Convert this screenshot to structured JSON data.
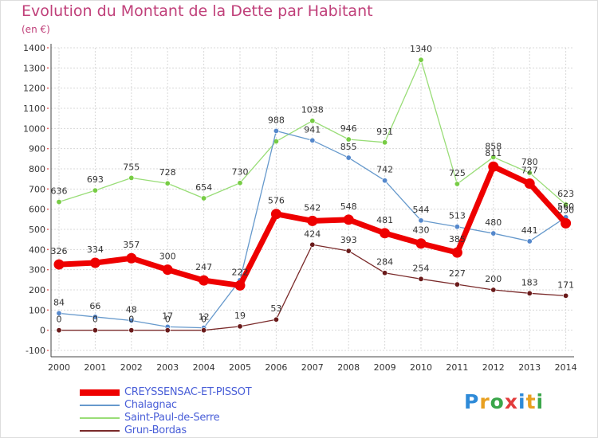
{
  "title": "Evolution du Montant de la Dette par Habitant",
  "subtitle": "(en €)",
  "logo": {
    "letters": [
      "P",
      "r",
      "o",
      "x",
      "i",
      "t",
      "i"
    ],
    "colors": [
      "#2e8ad8",
      "#e8a020",
      "#3aa64a",
      "#e23c3c",
      "#2e8ad8",
      "#e8a020",
      "#3aa64a"
    ]
  },
  "chart_data": {
    "type": "line",
    "x": [
      "2000",
      "2001",
      "2002",
      "2003",
      "2004",
      "2005",
      "2006",
      "2007",
      "2008",
      "2009",
      "2010",
      "2011",
      "2012",
      "2013",
      "2014"
    ],
    "ylim": [
      -100,
      1400
    ],
    "yticks": [
      "-100",
      "0",
      "100",
      "200",
      "300",
      "400",
      "500",
      "600",
      "700",
      "800",
      "900",
      "1000",
      "1100",
      "1200",
      "1300",
      "1400"
    ],
    "grid": true,
    "legend_position": "bottom-left",
    "series": [
      {
        "name": "Saint-Paul-de-Serre",
        "color": "#99dd77",
        "marker_color": "#77cc44",
        "values": [
          636,
          693,
          755,
          728,
          654,
          730,
          936,
          1038,
          946,
          931,
          1340,
          725,
          858,
          780,
          623
        ],
        "labels": [
          "636",
          "693",
          "755",
          "728",
          "654",
          "730",
          "",
          "1038",
          "946",
          "931",
          "1340",
          "725",
          "858",
          "780",
          "623"
        ]
      },
      {
        "name": "Chalagnac",
        "color": "#6699cc",
        "marker_color": "#5588cc",
        "values": [
          84,
          66,
          48,
          17,
          12,
          248,
          988,
          941,
          855,
          742,
          544,
          513,
          480,
          441,
          560
        ],
        "labels": [
          "84",
          "66",
          "48",
          "17",
          "12",
          "",
          "988",
          "941",
          "855",
          "742",
          "544",
          "513",
          "480",
          "441",
          "560"
        ]
      },
      {
        "name": "Grun-Bordas",
        "color": "#7a2a2a",
        "marker_color": "#6a1a1a",
        "values": [
          0,
          0,
          0,
          0,
          0,
          19,
          53,
          424,
          393,
          284,
          254,
          227,
          200,
          183,
          171
        ],
        "labels": [
          "0",
          "0",
          "0",
          "0",
          "0",
          "19",
          "53",
          "424",
          "393",
          "284",
          "254",
          "227",
          "200",
          "183",
          "171"
        ]
      },
      {
        "name": "CREYSSENSAC-ET-PISSOT",
        "color": "#ee0000",
        "marker_color": "#ee0000",
        "values": [
          326,
          334,
          357,
          300,
          247,
          222,
          576,
          542,
          548,
          481,
          430,
          385,
          811,
          727,
          530
        ],
        "labels": [
          "326",
          "334",
          "357",
          "300",
          "247",
          "222",
          "576",
          "542",
          "548",
          "481",
          "430",
          "385",
          "811",
          "727",
          "530"
        ]
      }
    ],
    "legend": [
      {
        "name": "CREYSSENSAC-ET-PISSOT",
        "color": "#ee0000"
      },
      {
        "name": "Chalagnac",
        "color": "#6699cc"
      },
      {
        "name": "Saint-Paul-de-Serre",
        "color": "#99dd77"
      },
      {
        "name": "Grun-Bordas",
        "color": "#7a2a2a"
      }
    ]
  }
}
